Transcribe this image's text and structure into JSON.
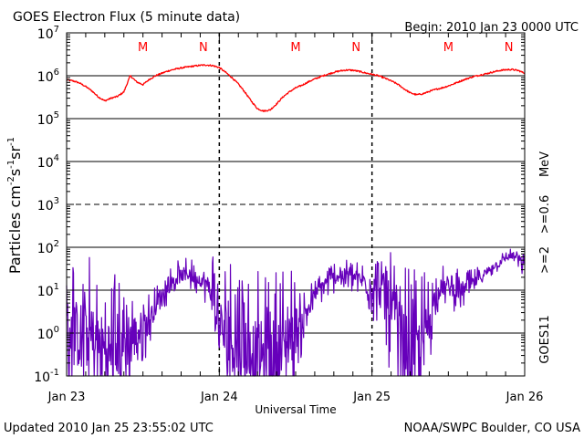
{
  "header": {
    "title": "GOES Electron Flux (5 minute data)",
    "begin": "Begin: 2010 Jan 23 0000 UTC"
  },
  "footer": {
    "updated": "Updated 2010 Jan 25 23:55:02 UTC",
    "source": "NOAA/SWPC Boulder, CO USA"
  },
  "colors": {
    "high_energy": "#ff0000",
    "low_energy": "#6600bb",
    "axis": "#000000"
  },
  "chart_data": {
    "type": "line",
    "title": "GOES Electron Flux (5 minute data)",
    "xlabel": "Universal Time",
    "ylabel_parts": [
      "Particles cm",
      "-2",
      "s",
      "-1",
      "sr",
      "-1"
    ],
    "yscale": "log",
    "ylim": [
      0.1,
      10000000
    ],
    "xlim_hours": [
      0,
      72
    ],
    "y_ticks": [
      {
        "base": "10",
        "exp": "-1",
        "value": 0.1
      },
      {
        "base": "10",
        "exp": "0",
        "value": 1
      },
      {
        "base": "10",
        "exp": "1",
        "value": 10
      },
      {
        "base": "10",
        "exp": "2",
        "value": 100
      },
      {
        "base": "10",
        "exp": "3",
        "value": 1000
      },
      {
        "base": "10",
        "exp": "4",
        "value": 10000
      },
      {
        "base": "10",
        "exp": "5",
        "value": 100000
      },
      {
        "base": "10",
        "exp": "6",
        "value": 1000000
      },
      {
        "base": "10",
        "exp": "7",
        "value": 10000000
      }
    ],
    "solid_gridlines": [
      1,
      10,
      100,
      10000,
      100000,
      1000000
    ],
    "dashed_gridlines": [
      1000
    ],
    "x_ticks": [
      {
        "label": "Jan 23",
        "hour": 0
      },
      {
        "label": "Jan 24",
        "hour": 24
      },
      {
        "label": "Jan 25",
        "hour": 48
      },
      {
        "label": "Jan 26",
        "hour": 72
      }
    ],
    "day_boundaries_hours": [
      24,
      48
    ],
    "markers": [
      {
        "label": "M",
        "hour": 12
      },
      {
        "label": "N",
        "hour": 21.5
      },
      {
        "label": "M",
        "hour": 36
      },
      {
        "label": "N",
        "hour": 45.5
      },
      {
        "label": "M",
        "hour": 60
      },
      {
        "label": "N",
        "hour": 69.5
      }
    ],
    "right_legend": {
      "unit": "MeV",
      "high": ">=0.6",
      "low": ">=2",
      "satellite": "GOES11"
    },
    "series": [
      {
        "name": ">=0.6 MeV",
        "color": "#ff0000",
        "style": "smooth",
        "hours": [
          0,
          1,
          2,
          3,
          4,
          5,
          6,
          7,
          8,
          9,
          10,
          11,
          12,
          13,
          14,
          15,
          16,
          17,
          18,
          19,
          20,
          21,
          22,
          23,
          24,
          25,
          26,
          27,
          28,
          29,
          30,
          31,
          32,
          33,
          34,
          35,
          36,
          37,
          38,
          39,
          40,
          41,
          42,
          43,
          44,
          45,
          46,
          47,
          48,
          49,
          50,
          51,
          52,
          53,
          54,
          55,
          56,
          57,
          58,
          59,
          60,
          61,
          62,
          63,
          64,
          65,
          66,
          67,
          68,
          69,
          70,
          71,
          72
        ],
        "values": [
          800000,
          760000,
          680000,
          560000,
          440000,
          320000,
          260000,
          300000,
          330000,
          420000,
          1000000,
          720000,
          620000,
          820000,
          1000000,
          1150000,
          1300000,
          1420000,
          1520000,
          1600000,
          1680000,
          1750000,
          1780000,
          1720000,
          1550000,
          1200000,
          900000,
          640000,
          420000,
          260000,
          170000,
          150000,
          160000,
          220000,
          320000,
          420000,
          520000,
          600000,
          720000,
          840000,
          960000,
          1080000,
          1200000,
          1300000,
          1360000,
          1340000,
          1260000,
          1160000,
          1080000,
          1000000,
          880000,
          760000,
          640000,
          500000,
          400000,
          360000,
          380000,
          430000,
          480000,
          520000,
          580000,
          660000,
          760000,
          860000,
          960000,
          1040000,
          1120000,
          1220000,
          1320000,
          1380000,
          1400000,
          1320000,
          1150000
        ]
      },
      {
        "name": ">=2 MeV",
        "color": "#6600bb",
        "style": "noisy",
        "hours": [
          0,
          1,
          2,
          3,
          4,
          5,
          6,
          7,
          8,
          9,
          10,
          11,
          12,
          13,
          14,
          15,
          16,
          17,
          18,
          19,
          20,
          21,
          22,
          23,
          24,
          25,
          26,
          27,
          28,
          29,
          30,
          31,
          32,
          33,
          34,
          35,
          36,
          37,
          38,
          39,
          40,
          41,
          42,
          43,
          44,
          45,
          46,
          47,
          48,
          49,
          50,
          51,
          52,
          53,
          54,
          55,
          56,
          57,
          58,
          59,
          60,
          61,
          62,
          63,
          64,
          65,
          66,
          67,
          68,
          69,
          70,
          71,
          72
        ],
        "values": [
          1,
          1,
          0.9,
          0.8,
          0.7,
          0.5,
          0.4,
          0.4,
          0.5,
          0.7,
          0.8,
          0.9,
          1.5,
          2,
          4,
          8,
          12,
          18,
          22,
          25,
          20,
          18,
          14,
          8,
          1.5,
          1,
          0.8,
          0.6,
          0.5,
          0.4,
          0.3,
          0.3,
          0.3,
          0.4,
          0.5,
          0.8,
          1.2,
          2,
          4,
          8,
          12,
          16,
          20,
          22,
          22,
          20,
          18,
          14,
          12,
          10,
          8,
          3,
          1.2,
          0.6,
          0.3,
          0.3,
          0.6,
          2,
          8,
          12,
          12,
          10,
          10,
          12,
          15,
          20,
          26,
          35,
          45,
          55,
          65,
          55,
          35
        ],
        "noise_amp": [
          2,
          2,
          2,
          2,
          2,
          2,
          2,
          2,
          2,
          2,
          1.5,
          1.2,
          0.9,
          0.7,
          0.5,
          0.4,
          0.4,
          0.4,
          0.4,
          0.4,
          0.4,
          0.4,
          0.5,
          1.2,
          1.5,
          2,
          2,
          2,
          2,
          2,
          2,
          2,
          2,
          2,
          2,
          1.8,
          1.4,
          0.8,
          0.5,
          0.4,
          0.4,
          0.4,
          0.4,
          0.4,
          0.4,
          0.4,
          0.4,
          0.6,
          0.8,
          0.9,
          1.2,
          1.6,
          2,
          2,
          2,
          2,
          1.8,
          1.2,
          0.6,
          0.5,
          0.5,
          0.5,
          0.5,
          0.4,
          0.3,
          0.3,
          0.3,
          0.2,
          0.2,
          0.2,
          0.2,
          0.3,
          0.3
        ]
      }
    ]
  }
}
